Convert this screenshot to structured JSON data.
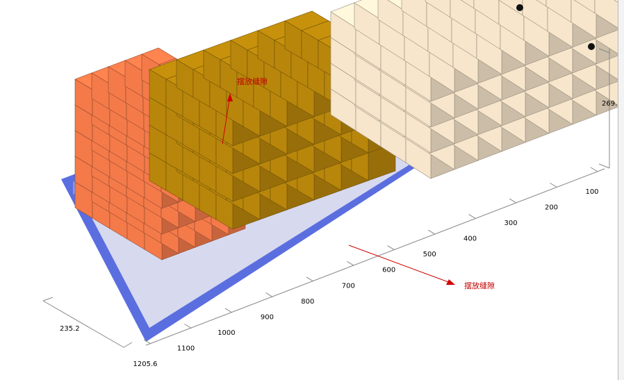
{
  "axis_length": {
    "ticks": [
      "100",
      "200",
      "300",
      "400",
      "500",
      "600",
      "700",
      "800",
      "900",
      "1000",
      "1100",
      "1205.6"
    ]
  },
  "axis_width": {
    "label": "235.2"
  },
  "axis_height": {
    "label": "269."
  },
  "annotations": [
    {
      "label": "摆放缝隙"
    },
    {
      "label": "摆放缝隙"
    }
  ],
  "groups": [
    {
      "name": "cargo-group-orange",
      "color": "#f47a4a",
      "cols": 5,
      "rows": 5,
      "layers": 5
    },
    {
      "name": "cargo-group-brown",
      "color": "#b8860b",
      "cols": 6,
      "rows": 5,
      "layers": 4
    },
    {
      "name": "cargo-group-cream",
      "color": "#f7e6cc",
      "cols": 9,
      "rows": 4,
      "layers": 4
    }
  ],
  "container_color": "#5b6ee0"
}
